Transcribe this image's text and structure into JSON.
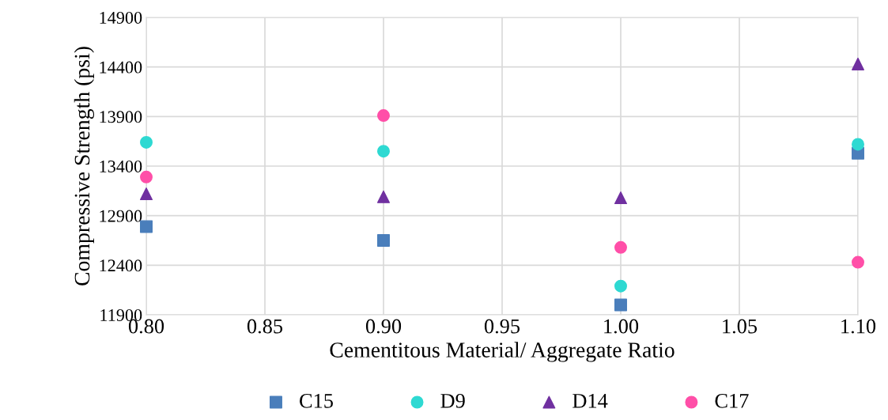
{
  "chart_data": {
    "type": "scatter",
    "xlabel": "Cementitous Material/ Aggregate Ratio",
    "ylabel": "Compressive Strength (psi)",
    "x": [
      0.8,
      0.9,
      1.0,
      1.1
    ],
    "series": [
      {
        "name": "C15",
        "color": "#4a7ebb",
        "marker": "square",
        "values": [
          12790,
          12650,
          12000,
          13530
        ]
      },
      {
        "name": "D9",
        "color": "#2ed9d2",
        "marker": "circle",
        "values": [
          13640,
          13550,
          12190,
          13620
        ]
      },
      {
        "name": "D14",
        "color": "#7030a0",
        "marker": "triangle",
        "values": [
          13120,
          13090,
          13080,
          14430
        ]
      },
      {
        "name": "C17",
        "color": "#ff4fa8",
        "marker": "circle",
        "values": [
          13290,
          13910,
          12580,
          12430
        ]
      }
    ],
    "xlim": [
      0.8,
      1.1
    ],
    "xticks": [
      {
        "value": 0.8,
        "label": "0.80"
      },
      {
        "value": 0.85,
        "label": "0.85"
      },
      {
        "value": 0.9,
        "label": "0.90"
      },
      {
        "value": 0.95,
        "label": "0.95"
      },
      {
        "value": 1.0,
        "label": "1.00"
      },
      {
        "value": 1.05,
        "label": "1.05"
      },
      {
        "value": 1.1,
        "label": "1.10"
      }
    ],
    "ylim": [
      11900,
      14900
    ],
    "yticks": [
      11900,
      12400,
      12900,
      13400,
      13900,
      14400,
      14900
    ],
    "grid": true,
    "legend": "bottom"
  }
}
